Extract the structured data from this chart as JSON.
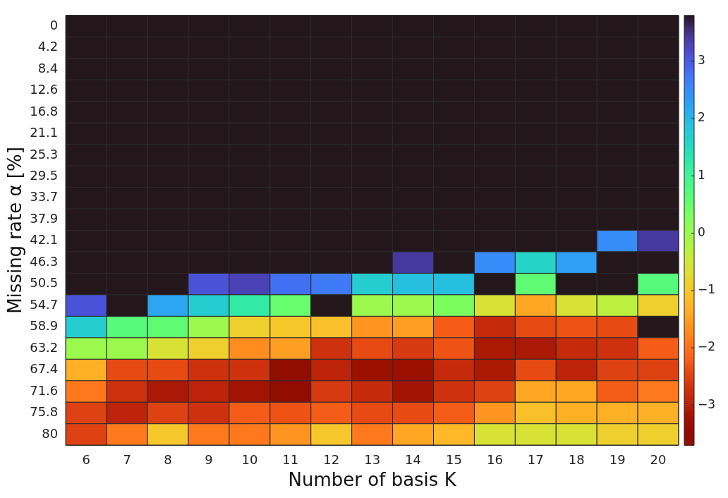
{
  "chart_data": {
    "type": "heatmap",
    "xlabel": "Number of basis K",
    "ylabel": "Missing rate α [%]",
    "categories": [
      "6",
      "7",
      "8",
      "9",
      "10",
      "11",
      "12",
      "13",
      "14",
      "15",
      "16",
      "17",
      "18",
      "19",
      "20"
    ],
    "y_categories": [
      "0",
      "4.2",
      "8.4",
      "12.6",
      "16.8",
      "21.1",
      "25.3",
      "29.5",
      "33.7",
      "37.9",
      "42.1",
      "46.3",
      "50.5",
      "54.7",
      "58.9",
      "63.2",
      "67.4",
      "71.6",
      "75.8",
      "80"
    ],
    "cells": [
      [
        3.8,
        3.8,
        3.8,
        3.8,
        3.8,
        3.8,
        3.8,
        3.8,
        3.8,
        3.8,
        3.8,
        3.8,
        3.8,
        3.8,
        3.8
      ],
      [
        3.8,
        3.8,
        3.8,
        3.8,
        3.8,
        3.8,
        3.8,
        3.8,
        3.8,
        3.8,
        3.8,
        3.8,
        3.8,
        3.8,
        3.8
      ],
      [
        3.8,
        3.8,
        3.8,
        3.8,
        3.8,
        3.8,
        3.8,
        3.8,
        3.8,
        3.8,
        3.8,
        3.8,
        3.8,
        3.8,
        3.8
      ],
      [
        3.8,
        3.8,
        3.8,
        3.8,
        3.8,
        3.8,
        3.8,
        3.8,
        3.8,
        3.8,
        3.8,
        3.8,
        3.8,
        3.8,
        3.8
      ],
      [
        3.8,
        3.8,
        3.8,
        3.8,
        3.8,
        3.8,
        3.8,
        3.8,
        3.8,
        3.8,
        3.8,
        3.8,
        3.8,
        3.8,
        3.8
      ],
      [
        3.8,
        3.8,
        3.8,
        3.8,
        3.8,
        3.8,
        3.8,
        3.8,
        3.8,
        3.8,
        3.8,
        3.8,
        3.8,
        3.8,
        3.8
      ],
      [
        3.8,
        3.8,
        3.8,
        3.8,
        3.8,
        3.8,
        3.8,
        3.8,
        3.8,
        3.8,
        3.8,
        3.8,
        3.8,
        3.8,
        3.8
      ],
      [
        3.8,
        3.8,
        3.8,
        3.8,
        3.8,
        3.8,
        3.8,
        3.8,
        3.8,
        3.8,
        3.8,
        3.8,
        3.8,
        3.8,
        3.8
      ],
      [
        3.8,
        3.8,
        3.8,
        3.8,
        3.8,
        3.8,
        3.8,
        3.8,
        3.8,
        3.8,
        3.8,
        3.8,
        3.8,
        3.8,
        3.8
      ],
      [
        3.8,
        3.8,
        3.8,
        3.8,
        3.8,
        3.8,
        3.8,
        3.8,
        3.8,
        3.8,
        3.8,
        3.8,
        3.8,
        3.8,
        3.8
      ],
      [
        3.8,
        3.8,
        3.8,
        3.8,
        3.8,
        3.8,
        3.8,
        3.8,
        3.8,
        3.8,
        3.8,
        3.8,
        3.8,
        2.5,
        3.4
      ],
      [
        3.8,
        3.8,
        3.8,
        3.8,
        3.8,
        3.8,
        3.8,
        3.8,
        3.4,
        3.8,
        2.5,
        1.6,
        2.3,
        3.8,
        3.8
      ],
      [
        3.8,
        3.8,
        3.8,
        3.1,
        3.3,
        2.8,
        2.7,
        1.7,
        1.9,
        1.9,
        3.8,
        0.6,
        3.8,
        3.8,
        0.7
      ],
      [
        3.1,
        3.8,
        2.2,
        1.7,
        1.2,
        0.5,
        3.8,
        0.0,
        0.0,
        0.3,
        -0.6,
        -1.4,
        -0.6,
        -0.3,
        -0.9
      ],
      [
        1.7,
        0.7,
        0.6,
        0.0,
        -0.9,
        -1.0,
        -1.1,
        -1.6,
        -1.5,
        -2.2,
        -2.8,
        -2.4,
        -2.3,
        -2.4,
        3.8
      ],
      [
        0.0,
        0.0,
        -0.6,
        -0.9,
        -1.7,
        -1.5,
        -2.7,
        -2.4,
        -2.6,
        -2.3,
        -3.1,
        -3.1,
        -2.8,
        -2.7,
        -2.2
      ],
      [
        -1.3,
        -2.4,
        -2.4,
        -2.7,
        -2.7,
        -3.7,
        -2.9,
        -3.3,
        -3.3,
        -2.8,
        -3.1,
        -2.4,
        -2.9,
        -2.5,
        -2.5
      ],
      [
        -1.9,
        -2.7,
        -3.1,
        -2.9,
        -3.2,
        -3.5,
        -2.6,
        -2.8,
        -3.2,
        -2.7,
        -2.5,
        -1.4,
        -1.4,
        -2.2,
        -1.9
      ],
      [
        -2.5,
        -2.9,
        -2.5,
        -2.7,
        -2.2,
        -2.3,
        -2.2,
        -2.4,
        -2.4,
        -2.2,
        -1.6,
        -1.1,
        -1.3,
        -1.3,
        -1.3
      ],
      [
        -2.5,
        -1.9,
        -1.0,
        -1.9,
        -1.9,
        -1.6,
        -1.0,
        -1.9,
        -1.4,
        -1.2,
        -0.6,
        -0.6,
        -0.6,
        -0.9,
        -0.9
      ]
    ],
    "clim": [
      -3.7,
      3.8
    ],
    "cticks": [
      {
        "value": -3,
        "label": "−3"
      },
      {
        "value": -2,
        "label": "−2"
      },
      {
        "value": -1,
        "label": "−1"
      },
      0,
      1,
      2,
      3
    ]
  }
}
